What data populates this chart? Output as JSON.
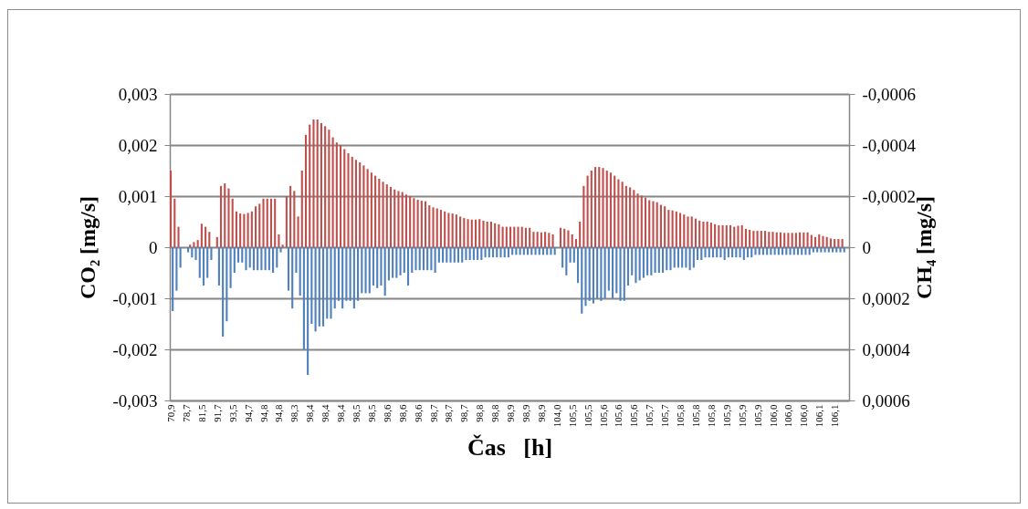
{
  "chart_data": {
    "type": "bar",
    "xlabel": "Čas   [h]",
    "ylabel": "CO₂ [mg/s]",
    "y2label": "CH₄ [mg/s]",
    "grid": "y",
    "categories": [
      "70,9",
      null,
      null,
      null,
      "78,7",
      null,
      null,
      null,
      "81,5",
      null,
      null,
      null,
      "91,7",
      null,
      null,
      null,
      "93,5",
      null,
      null,
      null,
      "94,7",
      null,
      null,
      null,
      "94,8",
      null,
      null,
      null,
      "94,8",
      null,
      null,
      null,
      "98,3",
      null,
      null,
      null,
      "98,4",
      null,
      null,
      null,
      "98,4",
      null,
      null,
      null,
      "98,4",
      null,
      null,
      null,
      "98,5",
      null,
      null,
      null,
      "98,5",
      null,
      null,
      null,
      "98,6",
      null,
      null,
      null,
      "98,6",
      null,
      null,
      null,
      "98,6",
      null,
      null,
      null,
      "98,7",
      null,
      null,
      null,
      "98,7",
      null,
      null,
      null,
      "98,7",
      null,
      null,
      null,
      "98,8",
      null,
      null,
      null,
      "98,8",
      null,
      null,
      null,
      "98,9",
      null,
      null,
      null,
      "98,9",
      null,
      null,
      null,
      "98,9",
      null,
      null,
      null,
      "104,0",
      null,
      null,
      null,
      "105,5",
      null,
      null,
      null,
      "105,5",
      null,
      null,
      null,
      "105,6",
      null,
      null,
      null,
      "105,6",
      null,
      null,
      null,
      "105,6",
      null,
      null,
      null,
      "105,7",
      null,
      null,
      null,
      "105,7",
      null,
      null,
      null,
      "105,8",
      null,
      null,
      null,
      "105,8",
      null,
      null,
      null,
      "105,8",
      null,
      null,
      null,
      "105,9",
      null,
      null,
      null,
      "105,9",
      null,
      null,
      null,
      "105,9",
      null,
      null,
      null,
      "106,0",
      null,
      null,
      null,
      "106,0",
      null,
      null,
      null,
      "106,0",
      null,
      null,
      null,
      "106,1",
      null,
      null,
      null,
      "106,1",
      null,
      null,
      null
    ],
    "series": [
      {
        "color": "#c0504d",
        "values": [
          0.0015,
          0.00095,
          0.0004,
          0,
          0,
          5e-05,
          0.0001,
          0.00014,
          0.00046,
          0.0004,
          0.0003,
          0,
          0.0002,
          0.0012,
          0.00125,
          0.00115,
          0.00095,
          0.0007,
          0.00066,
          0.00065,
          0.00067,
          0.0007,
          0.0008,
          0.00085,
          0.00095,
          0.00095,
          0.00095,
          0.00095,
          0.00025,
          5e-05,
          0.001,
          0.0012,
          0.0011,
          0.0006,
          0.0015,
          0.0022,
          0.0024,
          0.0025,
          0.0025,
          0.00243,
          0.00237,
          0.0023,
          0.00215,
          0.00205,
          0.002,
          0.00192,
          0.00184,
          0.00177,
          0.00171,
          0.00166,
          0.0016,
          0.00153,
          0.00146,
          0.0014,
          0.00134,
          0.00128,
          0.00123,
          0.00118,
          0.00113,
          0.0011,
          0.00108,
          0.00103,
          0.001,
          0.00096,
          0.00093,
          0.00091,
          0.0009,
          0.00082,
          0.00078,
          0.00076,
          0.00073,
          0.0007,
          0.00067,
          0.00066,
          0.00064,
          0.0006,
          0.00057,
          0.00055,
          0.00054,
          0.00054,
          0.00055,
          0.00052,
          0.0005,
          0.0005,
          0.00047,
          0.00045,
          0.0004,
          0.0004,
          0.0004,
          0.0004,
          0.0004,
          0.0004,
          0.00038,
          0.00038,
          0.0003,
          0.0003,
          0.00029,
          0.0003,
          0.00028,
          0.00025,
          0,
          0.00038,
          0.00036,
          0.00033,
          0.00025,
          0.00016,
          0.0005,
          0.0012,
          0.0014,
          0.0015,
          0.00157,
          0.00157,
          0.00155,
          0.0015,
          0.00146,
          0.0014,
          0.00133,
          0.00128,
          0.0012,
          0.00117,
          0.00112,
          0.00105,
          0.00101,
          0.00097,
          0.00092,
          0.0009,
          0.00088,
          0.00083,
          0.0008,
          0.00073,
          0.00072,
          0.0007,
          0.00067,
          0.00064,
          0.0006,
          0.0006,
          0.00056,
          0.00052,
          0.0005,
          0.0005,
          0.00048,
          0.00045,
          0.00043,
          0.00043,
          0.00043,
          0.00043,
          0.0004,
          0.00042,
          0.00043,
          0.00036,
          0.00034,
          0.00032,
          0.00032,
          0.00032,
          0.00032,
          0.0003,
          0.0003,
          0.00029,
          0.00029,
          0.00028,
          0.00028,
          0.00028,
          0.00028,
          0.00029,
          0.00029,
          0.00029,
          0.00024,
          0.0002,
          0.00025,
          0.00022,
          0.0002,
          0.00017,
          0.00016,
          0.00016,
          0.00016,
          null
        ]
      },
      {
        "color": "#4f81bd",
        "axis": "y2",
        "values": [
          0.00025,
          0.00017,
          8e-05,
          0,
          2e-05,
          4e-05,
          5e-05,
          0.00012,
          0.00015,
          0.00012,
          5e-05,
          0,
          0.00015,
          0.00035,
          0.00029,
          0.00016,
          0.0001,
          6e-05,
          6e-05,
          9e-05,
          8e-05,
          9e-05,
          9e-05,
          9e-05,
          9e-05,
          9e-05,
          0.0001,
          8e-05,
          2e-05,
          0,
          0.00017,
          0.00024,
          0.0001,
          0.00019,
          0.0004,
          0.0005,
          0.0003,
          0.00033,
          0.00031,
          0.00031,
          0.00028,
          0.00028,
          0.00024,
          0.00021,
          0.00024,
          0.00021,
          0.00021,
          0.00024,
          0.00021,
          0.00018,
          0.00018,
          0.00018,
          0.00015,
          0.00016,
          0.00015,
          0.00019,
          0.00013,
          0.00012,
          0.00012,
          0.00011,
          0.0001,
          0.00015,
          0.0001,
          9e-05,
          9e-05,
          9e-05,
          9e-05,
          9e-05,
          0.0001,
          6e-05,
          6e-05,
          6e-05,
          6e-05,
          6e-05,
          6e-05,
          6e-05,
          5e-05,
          5e-05,
          5e-05,
          5e-05,
          5e-05,
          4e-05,
          4e-05,
          4e-05,
          4e-05,
          4e-05,
          4e-05,
          4e-05,
          3e-05,
          3e-05,
          3e-05,
          3e-05,
          3e-05,
          3e-05,
          3e-05,
          3e-05,
          3e-05,
          3e-05,
          3e-05,
          3e-05,
          0,
          8e-05,
          0.00011,
          6e-05,
          6e-05,
          0.00014,
          0.00026,
          0.00023,
          0.00021,
          0.00022,
          0.0002,
          0.00021,
          0.0002,
          0.00017,
          0.0002,
          0.00018,
          0.00021,
          0.00021,
          0.00015,
          0.00011,
          0.00014,
          0.00013,
          0.00012,
          0.00011,
          0.00011,
          0.0001,
          0.0001,
          0.0001,
          9e-05,
          9e-05,
          8e-05,
          8e-05,
          8e-05,
          8e-05,
          9e-05,
          8e-05,
          5e-05,
          5e-05,
          4e-05,
          4e-05,
          4e-05,
          4e-05,
          4e-05,
          5e-05,
          4e-05,
          4e-05,
          4e-05,
          4e-05,
          5e-05,
          4e-05,
          4e-05,
          3e-05,
          3e-05,
          3e-05,
          3e-05,
          3e-05,
          3e-05,
          3e-05,
          3e-05,
          3e-05,
          3e-05,
          3e-05,
          3e-05,
          3e-05,
          3e-05,
          3e-05,
          2e-05,
          2e-05,
          2e-05,
          2e-05,
          2e-05,
          2e-05,
          2e-05,
          2e-05,
          2e-05,
          null
        ]
      }
    ],
    "ylim": [
      -0.003,
      0.003
    ],
    "yticks": [
      {
        "value": -0.003,
        "label": "-0,003"
      },
      {
        "value": -0.002,
        "label": "-0,002"
      },
      {
        "value": -0.001,
        "label": "-0,001"
      },
      0,
      {
        "value": 0.001,
        "label": "0,001"
      },
      {
        "value": 0.002,
        "label": "0,002"
      },
      {
        "value": 0.003,
        "label": "0,003"
      }
    ],
    "y2lim": [
      0.0006,
      -0.0006
    ],
    "y2ticks": [
      {
        "value": 0.0006,
        "label": "0,0006"
      },
      {
        "value": 0.0004,
        "label": "0,0004"
      },
      {
        "value": 0.0002,
        "label": "0,0002"
      },
      0,
      {
        "value": -0.0002,
        "label": "-0,0002"
      },
      {
        "value": -0.0004,
        "label": "-0,0004"
      },
      {
        "value": -0.0006,
        "label": "-0,0006"
      }
    ]
  }
}
